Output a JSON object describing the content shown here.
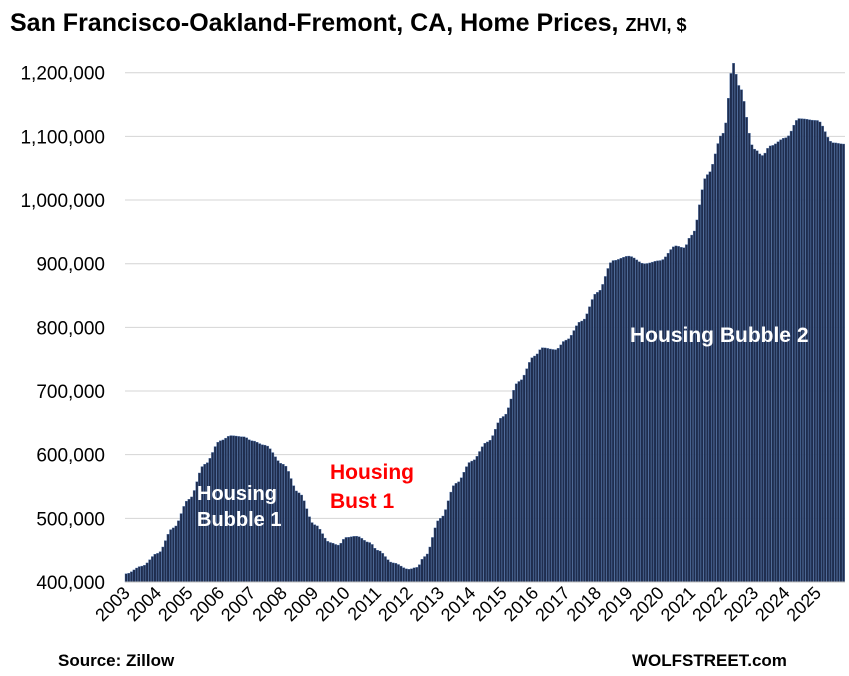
{
  "title_main": "San Francisco-Oakland-Fremont, CA, Home Prices, ",
  "title_unit": "ZHVI, $",
  "source": "Source: Zillow",
  "credit": "WOLFSTREET.com",
  "chart_data": {
    "type": "bar",
    "frequency": "monthly",
    "bar_color": "#1f2d4e",
    "bar_edge_color": "#4a6fa8",
    "ylim": [
      400000,
      1220000
    ],
    "y_ticks": [
      "400,000",
      "500,000",
      "600,000",
      "700,000",
      "800,000",
      "900,000",
      "1,000,000",
      "1,100,000",
      "1,200,000"
    ],
    "x_tick_labels": [
      "2003",
      "2004",
      "2005",
      "2006",
      "2007",
      "2008",
      "2009",
      "2010",
      "2011",
      "2012",
      "2013",
      "2014",
      "2015",
      "2016",
      "2017",
      "2018",
      "2019",
      "2020",
      "2021",
      "2022",
      "2023",
      "2024",
      "2025"
    ],
    "grid": "horizontal",
    "annotations": [
      {
        "text": "Housing Bubble 1",
        "color": "#ffffff"
      },
      {
        "text": "Housing Bust 1",
        "color": "#ff0000"
      },
      {
        "text": "Housing Bubble 2",
        "color": "#ffffff"
      }
    ],
    "anchors": [
      [
        "2003-01",
        413000
      ],
      [
        "2003-07",
        425000
      ],
      [
        "2004-01",
        445000
      ],
      [
        "2004-07",
        485000
      ],
      [
        "2005-01",
        530000
      ],
      [
        "2005-07",
        585000
      ],
      [
        "2006-01",
        622000
      ],
      [
        "2006-05",
        630000
      ],
      [
        "2006-10",
        628000
      ],
      [
        "2007-01",
        622000
      ],
      [
        "2007-06",
        615000
      ],
      [
        "2008-01",
        585000
      ],
      [
        "2008-07",
        540000
      ],
      [
        "2009-01",
        490000
      ],
      [
        "2009-07",
        462000
      ],
      [
        "2009-10",
        458000
      ],
      [
        "2010-01",
        470000
      ],
      [
        "2010-05",
        472000
      ],
      [
        "2010-10",
        462000
      ],
      [
        "2011-01",
        450000
      ],
      [
        "2011-07",
        430000
      ],
      [
        "2012-01",
        420000
      ],
      [
        "2012-04",
        423000
      ],
      [
        "2012-07",
        440000
      ],
      [
        "2013-01",
        500000
      ],
      [
        "2013-07",
        555000
      ],
      [
        "2014-01",
        590000
      ],
      [
        "2014-07",
        620000
      ],
      [
        "2015-01",
        660000
      ],
      [
        "2015-07",
        715000
      ],
      [
        "2016-01",
        755000
      ],
      [
        "2016-04",
        768000
      ],
      [
        "2016-09",
        765000
      ],
      [
        "2017-01",
        780000
      ],
      [
        "2017-07",
        810000
      ],
      [
        "2018-01",
        855000
      ],
      [
        "2018-07",
        905000
      ],
      [
        "2019-01",
        912000
      ],
      [
        "2019-07",
        900000
      ],
      [
        "2020-01",
        905000
      ],
      [
        "2020-07",
        928000
      ],
      [
        "2020-10",
        925000
      ],
      [
        "2021-01",
        945000
      ],
      [
        "2021-07",
        1040000
      ],
      [
        "2022-01",
        1105000
      ],
      [
        "2022-05",
        1215000
      ],
      [
        "2022-07",
        1180000
      ],
      [
        "2023-01",
        1080000
      ],
      [
        "2023-04",
        1070000
      ],
      [
        "2023-07",
        1085000
      ],
      [
        "2024-01",
        1098000
      ],
      [
        "2024-06",
        1128000
      ],
      [
        "2025-01",
        1125000
      ],
      [
        "2025-07",
        1090000
      ],
      [
        "2025-11",
        1088000
      ]
    ]
  }
}
